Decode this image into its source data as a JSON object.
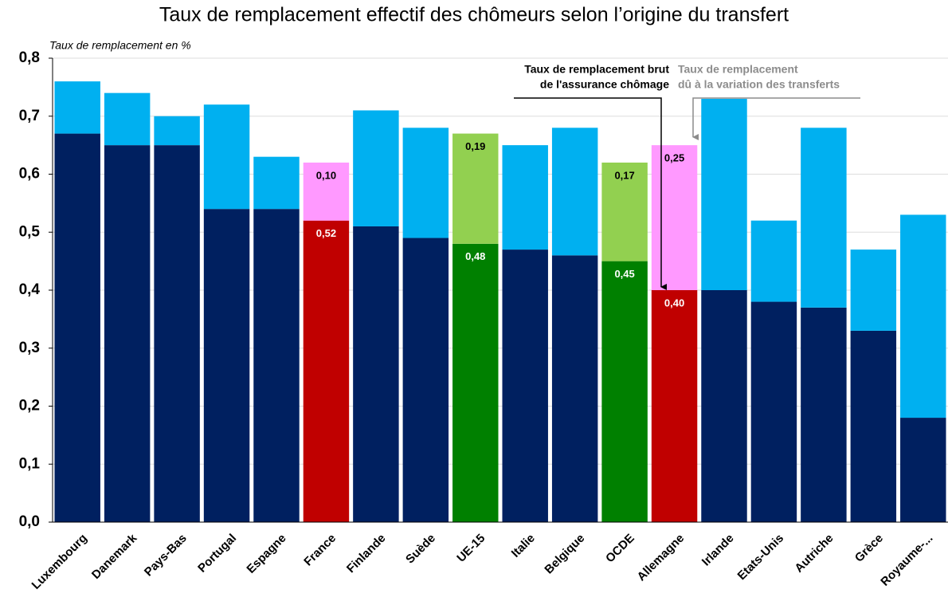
{
  "chart_data": {
    "type": "stacked_bar",
    "title": "Taux de remplacement effectif des chômeurs selon l’origine du transfert",
    "subtitle": "Taux de remplacement en %",
    "categories": [
      "Luxembourg",
      "Danemark",
      "Pays-Bas",
      "Portugal",
      "Espagne",
      "France",
      "Finlande",
      "Suède",
      "UE-15",
      "Italie",
      "Belgique",
      "OCDE",
      "Allemagne",
      "Irlande",
      "Etats-Unis",
      "Autriche",
      "Grèce",
      "Royaume-..."
    ],
    "series": [
      {
        "values": [
          0.67,
          0.65,
          0.65,
          0.54,
          0.54,
          0.52,
          0.51,
          0.49,
          0.48,
          0.47,
          0.46,
          0.45,
          0.4,
          0.4,
          0.38,
          0.37,
          0.33,
          0.18
        ],
        "value_labels": [
          null,
          null,
          null,
          null,
          null,
          "0,52",
          null,
          null,
          "0,48",
          null,
          null,
          "0,45",
          "0,40",
          null,
          null,
          null,
          null,
          null
        ],
        "colors": [
          "#002060",
          "#002060",
          "#002060",
          "#002060",
          "#002060",
          "#c00000",
          "#002060",
          "#002060",
          "#008000",
          "#002060",
          "#002060",
          "#008000",
          "#c00000",
          "#002060",
          "#002060",
          "#002060",
          "#002060",
          "#002060"
        ]
      },
      {
        "values": [
          0.09,
          0.09,
          0.05,
          0.18,
          0.09,
          0.1,
          0.2,
          0.19,
          0.19,
          0.18,
          0.22,
          0.17,
          0.25,
          0.33,
          0.14,
          0.31,
          0.14,
          0.35
        ],
        "value_labels": [
          null,
          null,
          null,
          null,
          null,
          "0,10",
          null,
          null,
          "0,19",
          null,
          null,
          "0,17",
          "0,25",
          null,
          null,
          null,
          null,
          null
        ],
        "colors": [
          "#00b0f0",
          "#00b0f0",
          "#00b0f0",
          "#00b0f0",
          "#00b0f0",
          "#ff99ff",
          "#00b0f0",
          "#00b0f0",
          "#92d050",
          "#00b0f0",
          "#00b0f0",
          "#92d050",
          "#ff99ff",
          "#00b0f0",
          "#00b0f0",
          "#00b0f0",
          "#00b0f0",
          "#00b0f0"
        ]
      }
    ],
    "annotations": [
      {
        "lines": [
          "Taux de remplacement brut",
          "de l'assurance chômage"
        ],
        "color": "#000000"
      },
      {
        "lines": [
          "Taux de remplacement",
          "dû à la variation des transferts"
        ],
        "color": "#8c8c8c"
      }
    ],
    "ylim": [
      0,
      0.8
    ],
    "yticks": [
      {
        "value": 0,
        "label": "0,0"
      },
      {
        "value": 0.1,
        "label": "0,1"
      },
      {
        "value": 0.2,
        "label": "0,2"
      },
      {
        "value": 0.3,
        "label": "0,3"
      },
      {
        "value": 0.4,
        "label": "0,4"
      },
      {
        "value": 0.5,
        "label": "0,5"
      },
      {
        "value": 0.6,
        "label": "0,6"
      },
      {
        "value": 0.7,
        "label": "0,7"
      },
      {
        "value": 0.8,
        "label": "0,8"
      }
    ],
    "grid": true
  }
}
